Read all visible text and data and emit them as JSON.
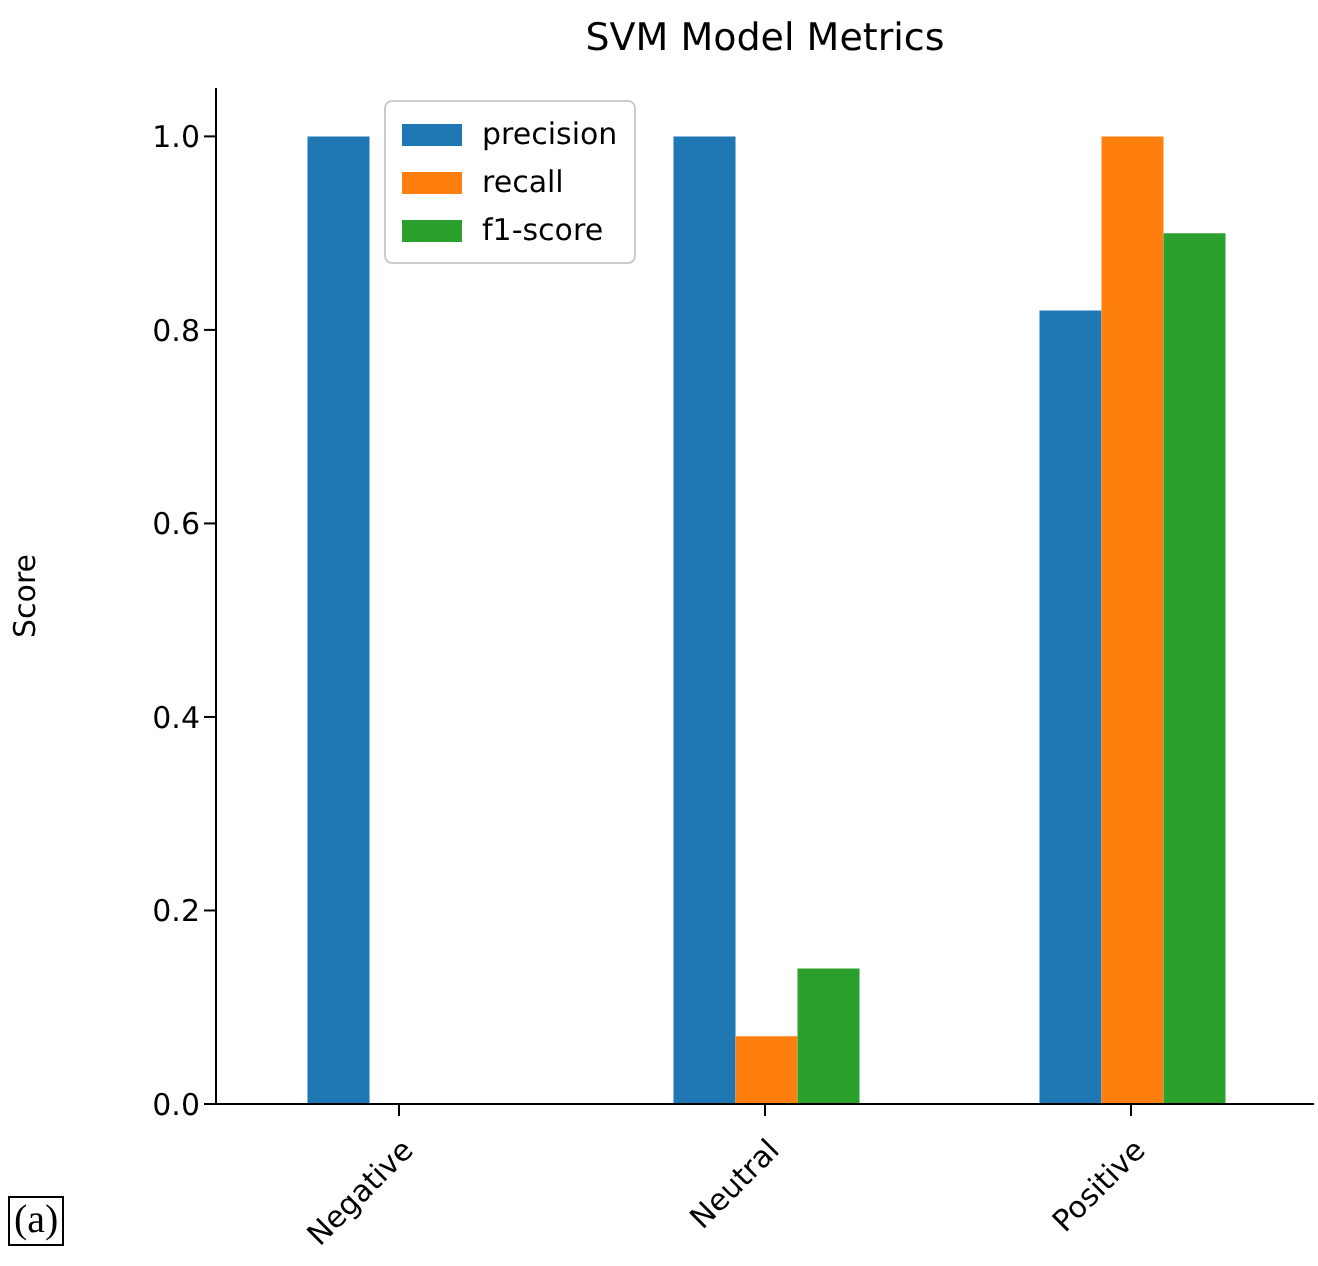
{
  "chart_data": {
    "type": "bar",
    "title": "SVM Model Metrics",
    "ylabel": "Score",
    "categories": [
      "Negative",
      "Neutral",
      "Positive"
    ],
    "series": [
      {
        "name": "precision",
        "color": "#1f77b4",
        "values": [
          1.0,
          1.0,
          0.82
        ]
      },
      {
        "name": "recall",
        "color": "#ff7f0e",
        "values": [
          0,
          0.07,
          1.0
        ]
      },
      {
        "name": "f1-score",
        "color": "#2ca02c",
        "values": [
          0,
          0.14,
          0.9
        ]
      }
    ],
    "ylim": [
      0,
      1.05
    ],
    "yticks": [
      {
        "value": 0,
        "label": "0.0"
      },
      0.2,
      0.4,
      0.6,
      0.8,
      {
        "value": 1,
        "label": "1.0"
      }
    ],
    "grid": false,
    "legend": "top left",
    "annotations": [
      "(a)"
    ]
  }
}
